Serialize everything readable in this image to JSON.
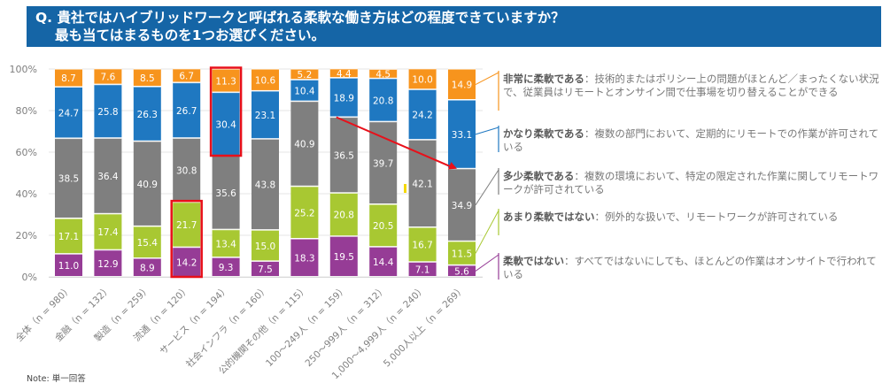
{
  "header": {
    "question_line1": "Q. 貴社ではハイブリッドワークと呼ばれる柔軟な働き方はどの程度できていますか？",
    "question_line2": "最も当てはまるものを1つお選びください。"
  },
  "note": "Note: 単一回答",
  "colors": {
    "very_flexible": "#f7941d",
    "quite_flexible": "#1f78c1",
    "somewhat_flexible": "#7f7f7f",
    "not_very_flexible": "#a8c832",
    "not_flexible": "#963c96",
    "highlight": "#e8101a"
  },
  "legend": [
    {
      "key": "very_flexible",
      "label": "非常に柔軟である",
      "desc": "：技術的またはポリシー上の問題がほとんど／まったくない状況で、従業員はリモートとオンサイン間で仕事場を切り替えることができる"
    },
    {
      "key": "quite_flexible",
      "label": "かなり柔軟である",
      "desc": "：複数の部門において、定期的にリモートでの作業が許可されている"
    },
    {
      "key": "somewhat_flexible",
      "label": "多少柔軟である",
      "desc": "：複数の環境において、特定の限定された作業に関してリモートワークが許可されている"
    },
    {
      "key": "not_very_flexible",
      "label": "あまり柔軟ではない",
      "desc": "：例外的な扱いで、リモートワークが許可されている"
    },
    {
      "key": "not_flexible",
      "label": "柔軟ではない",
      "desc": "：すべてではないにしても、ほとんどの作業はオンサイトで行われている"
    }
  ],
  "chart_data": {
    "type": "bar",
    "stacked": true,
    "title": "Q. 貴社ではハイブリッドワークと呼ばれる柔軟な働き方はどの程度できていますか？ 最も当てはまるものを1つお選びください。",
    "xlabel": "",
    "ylabel": "",
    "ylim": [
      0,
      100
    ],
    "yticks": [
      "0%",
      "20%",
      "40%",
      "60%",
      "80%",
      "100%"
    ],
    "grid": true,
    "legend_position": "right",
    "categories": [
      "全体（n = 980）",
      "金融（n = 132）",
      "製造（n = 259）",
      "流通（n = 120）",
      "サービス（n = 194）",
      "社会インフラ（n = 160）",
      "公的機関その他（n = 115）",
      "100～249人（n = 159）",
      "250～999人（n = 312）",
      "1,000～4,999人（n = 240）",
      "5,000人以上（n = 269）"
    ],
    "series": [
      {
        "name": "柔軟ではない",
        "key": "not_flexible",
        "values": [
          11.0,
          12.9,
          8.9,
          14.2,
          9.3,
          7.5,
          18.3,
          19.5,
          14.4,
          7.1,
          5.6
        ]
      },
      {
        "name": "あまり柔軟ではない",
        "key": "not_very_flexible",
        "values": [
          17.1,
          17.4,
          15.4,
          21.7,
          13.4,
          15.0,
          25.2,
          20.8,
          20.5,
          16.7,
          11.5
        ]
      },
      {
        "name": "多少柔軟である",
        "key": "somewhat_flexible",
        "values": [
          38.5,
          36.4,
          40.9,
          30.8,
          35.6,
          43.8,
          40.9,
          36.5,
          39.7,
          42.1,
          34.9
        ]
      },
      {
        "name": "かなり柔軟である",
        "key": "quite_flexible",
        "values": [
          24.7,
          25.8,
          26.3,
          26.7,
          30.4,
          23.1,
          10.4,
          18.9,
          20.8,
          24.2,
          33.1
        ]
      },
      {
        "name": "非常に柔軟である",
        "key": "very_flexible",
        "values": [
          8.7,
          7.6,
          8.5,
          6.7,
          11.3,
          10.6,
          5.2,
          4.4,
          4.5,
          10.0,
          14.9
        ]
      }
    ],
    "annotations": [
      {
        "type": "highlight-box",
        "category_index": 3,
        "series": [
          "柔軟ではない",
          "あまり柔軟ではない"
        ]
      },
      {
        "type": "highlight-box",
        "category_index": 4,
        "series": [
          "かなり柔軟である",
          "非常に柔軟である"
        ]
      },
      {
        "type": "arrow",
        "from": {
          "category_index": 7,
          "value": 76.8
        },
        "to": {
          "category_index": 10,
          "value": 52.0
        }
      }
    ]
  }
}
